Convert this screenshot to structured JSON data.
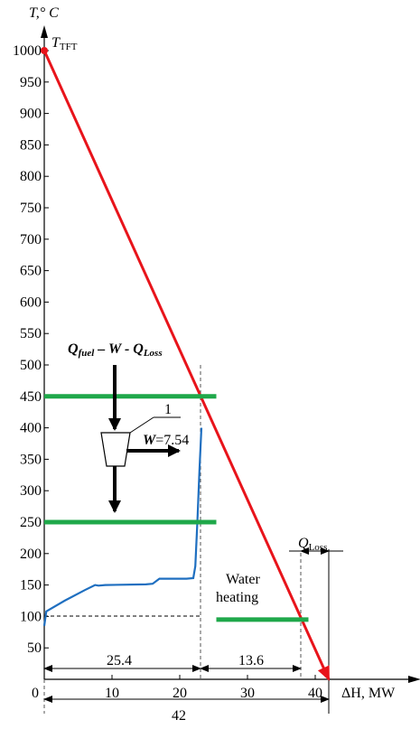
{
  "chart_data": {
    "type": "line",
    "title": "",
    "ylabel": "T,° C",
    "xlabel": "ΔH, MW",
    "xlim": [
      0,
      42
    ],
    "ylim": [
      0,
      1000
    ],
    "y_ticks": [
      1000,
      950,
      900,
      850,
      800,
      750,
      700,
      650,
      600,
      550,
      500,
      450,
      400,
      350,
      300,
      250,
      200,
      150,
      100,
      50
    ],
    "x_ticks": [
      0,
      10,
      20,
      30,
      40
    ],
    "grid": false,
    "series": [
      {
        "kind": "line",
        "color": "#e8141b",
        "points": [
          [
            0,
            1000
          ],
          [
            42,
            0
          ]
        ]
      },
      {
        "kind": "line",
        "color": "#1f6fc0",
        "points": [
          [
            0,
            85
          ],
          [
            0.3,
            108
          ],
          [
            3,
            125
          ],
          [
            6,
            142
          ],
          [
            7.5,
            150
          ],
          [
            8,
            149
          ],
          [
            9,
            150
          ],
          [
            15,
            151
          ],
          [
            16,
            152
          ],
          [
            17,
            160
          ],
          [
            18.5,
            160
          ],
          [
            21,
            160
          ],
          [
            22,
            161
          ],
          [
            22.3,
            180
          ],
          [
            22.6,
            250
          ],
          [
            22.9,
            330
          ],
          [
            23.2,
            400
          ]
        ]
      },
      {
        "kind": "segment",
        "color": "#1fa84a",
        "points": [
          [
            0,
            450
          ],
          [
            25.4,
            450
          ]
        ]
      },
      {
        "kind": "segment",
        "color": "#1fa84a",
        "points": [
          [
            0,
            250
          ],
          [
            25.4,
            250
          ]
        ]
      },
      {
        "kind": "segment",
        "color": "#1fa84a",
        "points": [
          [
            25.4,
            95
          ],
          [
            39,
            95
          ]
        ]
      }
    ],
    "annotations": {
      "t_tft": "T",
      "t_tft_sub": "TFT",
      "q_fuel": "Q",
      "q_fuel_sub": "fuel",
      "q_fuel_rest": " – W - Q",
      "q_fuel_loss_sub": "Loss",
      "turbine_id": "1",
      "work_label": "W",
      "work_value": "=7.54",
      "water_heating_line1": "Water",
      "water_heating_line2": "heating",
      "q_loss": "Q",
      "q_loss_sub": "Loss",
      "dim_1": "25.4",
      "dim_2": "13.6",
      "dim_total": "42"
    },
    "colors": {
      "red_line": "#e8141b",
      "blue_curve": "#1f6fc0",
      "green_bars": "#1fa84a"
    }
  }
}
